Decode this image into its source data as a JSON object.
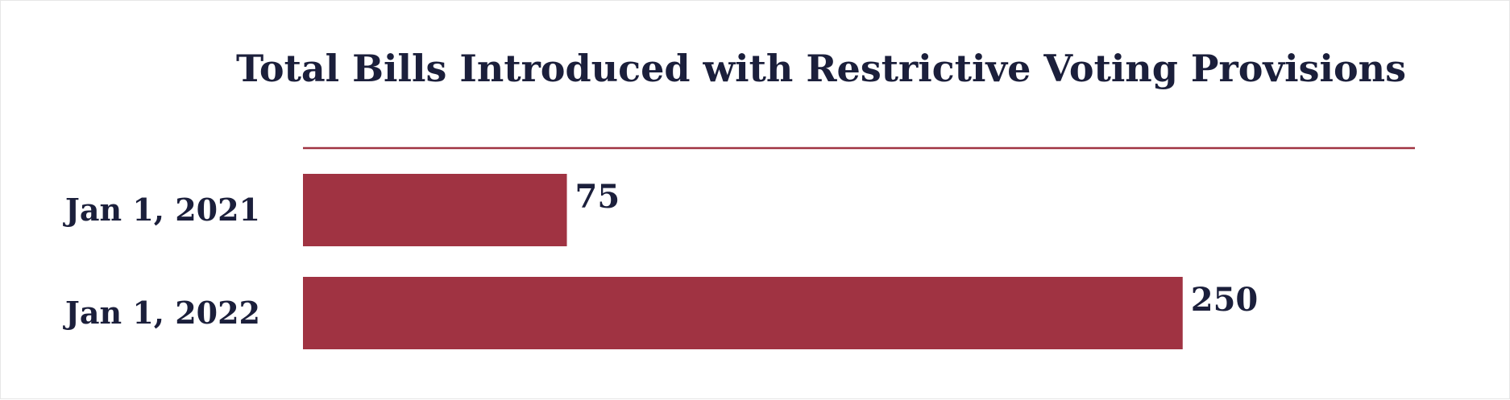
{
  "chart_data": {
    "type": "bar",
    "orientation": "horizontal",
    "title": "Total Bills Introduced with Restrictive Voting Provisions",
    "categories": [
      "Jan 1, 2021",
      "Jan 1, 2022"
    ],
    "values": [
      75,
      250
    ],
    "value_labels": [
      "75",
      "250"
    ],
    "xlabel": "",
    "ylabel": "",
    "xlim": [
      0,
      316
    ],
    "grid": false,
    "legend": "none",
    "colors": {
      "bar": "#a03342",
      "rule": "#a03342",
      "text": "#1b1f3b"
    }
  }
}
